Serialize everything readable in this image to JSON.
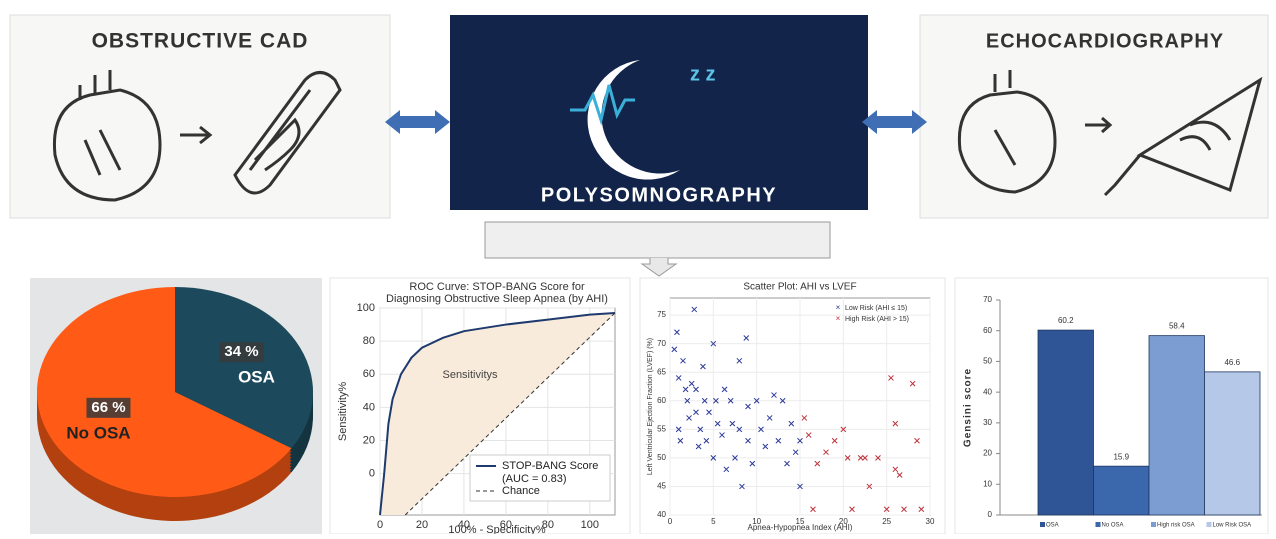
{
  "panels": {
    "left": {
      "title": "OBSTRUCTIVE CAD"
    },
    "center": {
      "title": "POLYSOMNOGRAPHY"
    },
    "right": {
      "title": "ECHOCARDIOGRAPHY"
    }
  },
  "chart_data": [
    {
      "type": "pie",
      "categories": [
        "OSA",
        "No OSA"
      ],
      "values": [
        34,
        66
      ],
      "value_labels": [
        "34 %",
        "66 %"
      ],
      "colors": [
        "#1c4a5c",
        "#ff5b16"
      ]
    },
    {
      "type": "line",
      "title": [
        "ROC Curve: STOP-BANG Score for",
        "Diagnosing Obstructive Sleep Apnea (by AHI)"
      ],
      "y_label": "Sensitivity%",
      "x_label": "100% - Specificity%",
      "xlim": [
        0,
        112
      ],
      "ylim": [
        -25,
        100
      ],
      "xticks": [
        0,
        20,
        40,
        60,
        80,
        100
      ],
      "yticks": [
        0,
        20,
        40,
        60,
        80,
        100
      ],
      "grid": true,
      "series": [
        {
          "name": "STOP-BANG Score",
          "color": "#1f3a6e",
          "x": [
            0,
            2,
            4,
            6,
            10,
            15,
            20,
            30,
            40,
            60,
            80,
            100,
            112
          ],
          "values": [
            -25,
            0,
            30,
            45,
            60,
            70,
            76,
            82,
            86,
            90,
            93,
            96,
            97
          ]
        },
        {
          "name": "Chance",
          "color": "#333333",
          "dashed": true,
          "x": [
            12,
            112
          ],
          "values": [
            -25,
            97
          ]
        }
      ],
      "annotations": [
        "(AUC = 0.83)",
        "Sensitivitys"
      ]
    },
    {
      "type": "scatter",
      "title": "Scatter Plot: AHI vs LVEF",
      "y_label": "Left Ventricular Ejection Fraction (LVEF) (%)",
      "x_label": "Apnea-Hypopnea Index (AHI)",
      "xlim": [
        0,
        30
      ],
      "ylim": [
        40,
        78
      ],
      "xticks": [
        0,
        5,
        10,
        15,
        20,
        25,
        30
      ],
      "yticks": [
        40,
        45,
        50,
        55,
        60,
        65,
        70,
        75
      ],
      "grid": true,
      "legend": "top-right",
      "series": [
        {
          "name": "Low Risk (AHI ≤ 15)",
          "color": "#2b3a9a",
          "x": [
            0.5,
            0.8,
            1,
            1,
            1.2,
            1.5,
            1.8,
            2,
            2.2,
            2.5,
            2.8,
            3,
            3,
            3.3,
            3.5,
            3.8,
            4,
            4.2,
            4.5,
            5,
            5,
            5.3,
            5.5,
            6,
            6.3,
            6.5,
            7,
            7.2,
            7.5,
            8,
            8,
            8.3,
            8.8,
            9,
            9,
            9.5,
            10,
            10.5,
            11,
            11.5,
            12,
            12.5,
            13,
            13.5,
            14,
            14.5,
            15,
            15
          ],
          "values": [
            69,
            72,
            64,
            55,
            53,
            67,
            62,
            60,
            57,
            63,
            76,
            62,
            58,
            52,
            55,
            66,
            60,
            53,
            58,
            70,
            50,
            60,
            56,
            54,
            62,
            48,
            60,
            56,
            50,
            67,
            55,
            45,
            71,
            59,
            53,
            49,
            60,
            55,
            52,
            57,
            61,
            53,
            60,
            49,
            56,
            51,
            53,
            45
          ]
        },
        {
          "name": "High Risk (AHI > 15)",
          "color": "#c0303a",
          "x": [
            15.5,
            16,
            16.5,
            17,
            18,
            19,
            20,
            20.5,
            21,
            22,
            22.5,
            23,
            24,
            25,
            25.5,
            26,
            26,
            27,
            28,
            28.5,
            26.5,
            29
          ],
          "values": [
            57,
            54,
            41,
            49,
            51,
            53,
            55,
            50,
            41,
            50,
            50,
            45,
            50,
            41,
            64,
            48,
            56,
            41,
            63,
            53,
            47,
            41
          ]
        }
      ]
    },
    {
      "type": "bar",
      "y_label": "Gensini score",
      "ylim": [
        0,
        70
      ],
      "yticks": [
        0,
        10,
        20,
        30,
        40,
        50,
        60,
        70
      ],
      "categories": [
        "OSA",
        "No OSA",
        "High risk OSA",
        "Low Risk OSA"
      ],
      "values": [
        60.2,
        15.9,
        58.4,
        46.6
      ],
      "colors": [
        "#2f5597",
        "#3b67ad",
        "#7c9dd2",
        "#b5c8e8"
      ]
    }
  ]
}
